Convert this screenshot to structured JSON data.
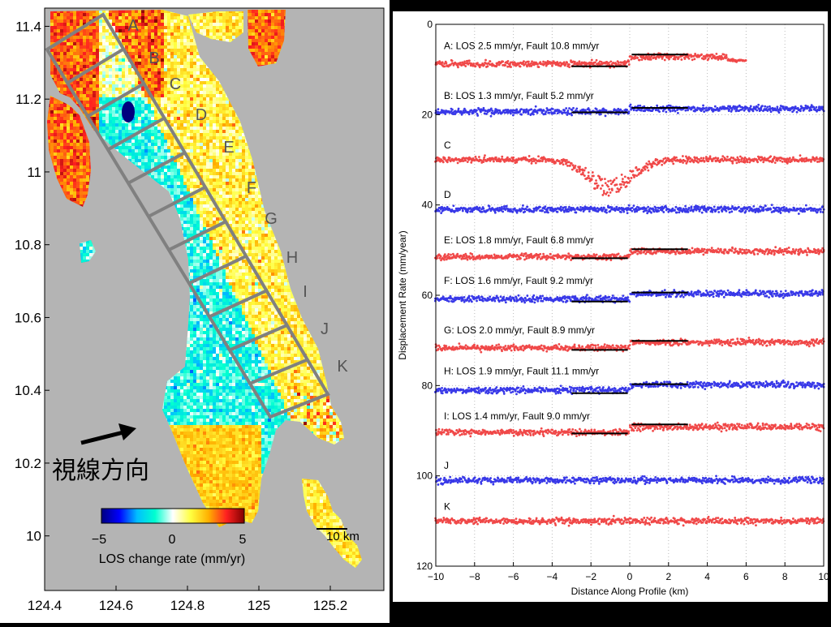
{
  "chart_data": [
    {
      "type": "heatmap",
      "x_ticks": [
        "124.4",
        "124.6",
        "124.8",
        "125",
        "125.2"
      ],
      "y_ticks": [
        "11.4",
        "11.2",
        "11",
        "10.8",
        "10.6",
        "10.4",
        "10.2",
        "10"
      ],
      "xlim": [
        124.4,
        125.35
      ],
      "ylim": [
        9.85,
        11.45
      ],
      "profile_labels": [
        "A",
        "B",
        "C",
        "D",
        "E",
        "F",
        "G",
        "H",
        "I",
        "J",
        "K"
      ],
      "direction_label": "視線方向",
      "scale_label": "10 km",
      "colorbar": {
        "label": "LOS change rate (mm/yr)",
        "ticks": [
          "−5",
          "0",
          "5"
        ],
        "range": [
          -5,
          5
        ],
        "colors": [
          "#00007f",
          "#0000ff",
          "#00bfff",
          "#00ffd0",
          "#ffffff",
          "#ffff40",
          "#ffb000",
          "#ff2020",
          "#7f0000"
        ]
      },
      "background_color": "#b4b4b4",
      "profile_box_color": "#808080"
    },
    {
      "type": "scatter",
      "xlabel": "Distance Along Profile (km)",
      "ylabel": "Displacement Rate (mm/year)",
      "xlim": [
        -10,
        10
      ],
      "ylim": [
        120,
        0
      ],
      "x_ticks": [
        "−10",
        "−8",
        "−6",
        "−4",
        "−2",
        "0",
        "2",
        "4",
        "6",
        "8",
        "10"
      ],
      "y_ticks": [
        "0",
        "20",
        "40",
        "60",
        "80",
        "100",
        "120"
      ],
      "grid": true,
      "colors": {
        "red": "#f04848",
        "blue": "#3838e8"
      },
      "series": [
        {
          "name": "A",
          "label": "A: LOS 2.5 mm/yr, Fault 10.8 mm/yr",
          "offset": 8,
          "color": "red",
          "xmax": 6,
          "fault": {
            "left": 9.3,
            "right": 6.7
          }
        },
        {
          "name": "B",
          "label": "B: LOS 1.3 mm/yr, Fault 5.2 mm/yr",
          "offset": 19,
          "color": "blue",
          "xmax": 10,
          "fault": {
            "left": 19.5,
            "right": 18.5
          }
        },
        {
          "name": "C",
          "label": "C",
          "offset": 30,
          "color": "red",
          "xmax": 10
        },
        {
          "name": "D",
          "label": "D",
          "offset": 41,
          "color": "blue",
          "xmax": 10
        },
        {
          "name": "E",
          "label": "E: LOS 1.8 mm/yr, Fault 6.8 mm/yr",
          "offset": 51,
          "color": "red",
          "xmax": 10,
          "fault": {
            "left": 51.8,
            "right": 49.8
          }
        },
        {
          "name": "F",
          "label": "F: LOS 1.6 mm/yr, Fault 9.2 mm/yr",
          "offset": 60,
          "color": "blue",
          "xmax": 10,
          "fault": {
            "left": 61.4,
            "right": 59.4
          }
        },
        {
          "name": "G",
          "label": "G: LOS 2.0 mm/yr, Fault 8.9 mm/yr",
          "offset": 71,
          "color": "red",
          "xmax": 10,
          "fault": {
            "left": 72.1,
            "right": 70.1
          }
        },
        {
          "name": "H",
          "label": "H: LOS 1.9 mm/yr, Fault 11.1 mm/yr",
          "offset": 80,
          "color": "blue",
          "xmax": 10,
          "fault": {
            "left": 81.7,
            "right": 79.7
          }
        },
        {
          "name": "I",
          "label": "I: LOS 1.4 mm/yr, Fault 9.0 mm/yr",
          "offset": 90,
          "color": "red",
          "xmax": 10,
          "fault": {
            "left": 90.6,
            "right": 88.6
          }
        },
        {
          "name": "J",
          "label": "J",
          "offset": 101,
          "color": "blue",
          "xmax": 10
        },
        {
          "name": "K",
          "label": "K",
          "offset": 110,
          "color": "red",
          "xmax": 10
        }
      ]
    }
  ]
}
